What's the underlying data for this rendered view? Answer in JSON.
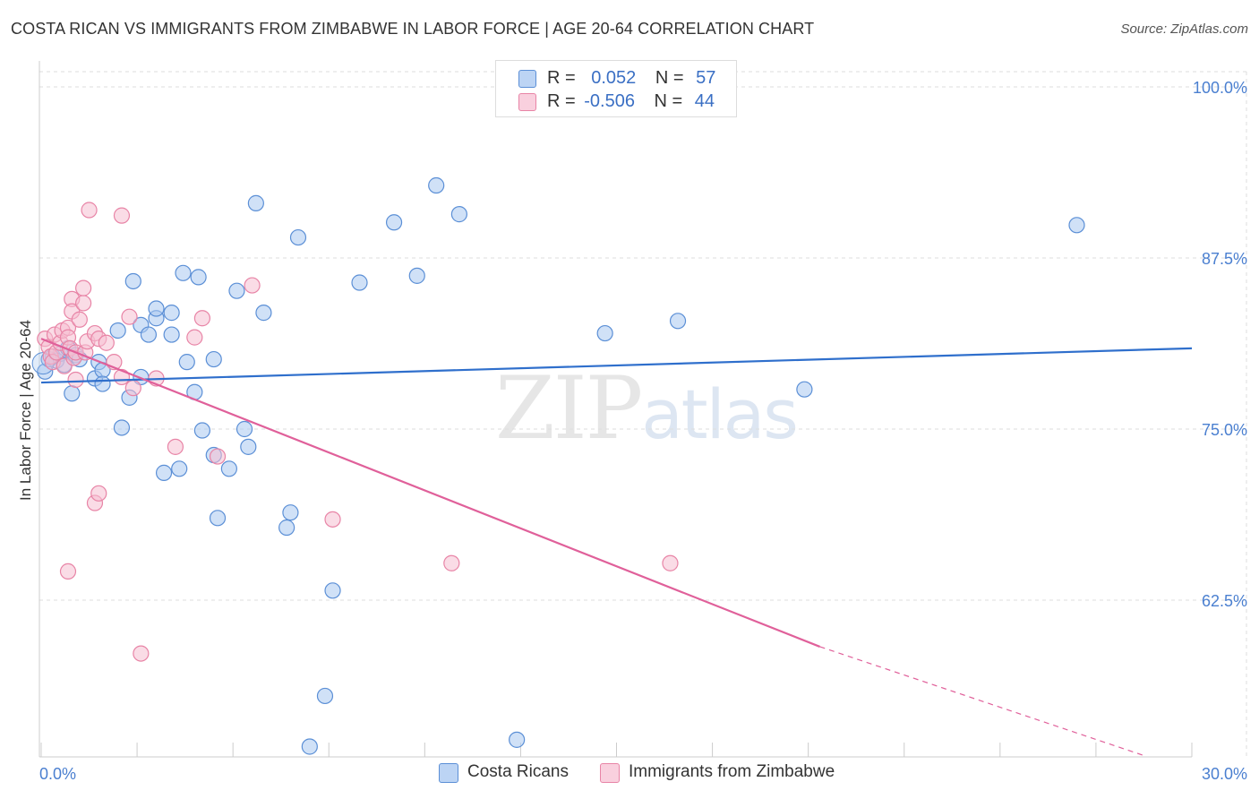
{
  "header": {
    "title": "COSTA RICAN VS IMMIGRANTS FROM ZIMBABWE IN LABOR FORCE | AGE 20-64 CORRELATION CHART",
    "source": "Source: ZipAtlas.com"
  },
  "watermark": {
    "zip": "ZIP",
    "atlas": "atlas"
  },
  "legend": {
    "rows": [
      {
        "r_label": "R =",
        "r_value": "0.052",
        "n_label": "N =",
        "n_value": "57"
      },
      {
        "r_label": "R =",
        "r_value": "-0.506",
        "n_label": "N =",
        "n_value": "44"
      }
    ]
  },
  "bottom_legend": {
    "series1": "Costa Ricans",
    "series2": "Immigrants from Zimbabwe"
  },
  "colors": {
    "blue_fill": "#aac8f0",
    "blue_stroke": "#5b8fd6",
    "blue_line": "#2f6fcc",
    "pink_fill": "#f6c0d2",
    "pink_stroke": "#e884a6",
    "pink_line": "#e0609a"
  },
  "chart_data": {
    "type": "scatter",
    "title": "COSTA RICAN VS IMMIGRANTS FROM ZIMBABWE IN LABOR FORCE | AGE 20-64 CORRELATION CHART",
    "xlabel": "",
    "ylabel": "In Labor Force | Age 20-64",
    "xlim": [
      0,
      30
    ],
    "ylim": [
      51,
      101
    ],
    "x_tick_labels": [
      "0.0%",
      "30.0%"
    ],
    "y_ticks": [
      100,
      87.5,
      75,
      62.5
    ],
    "y_tick_labels": [
      "100.0%",
      "87.5%",
      "75.0%",
      "62.5%"
    ],
    "grid": true,
    "series": [
      {
        "name": "Costa Ricans",
        "r": 0.052,
        "n": 57,
        "trend": {
          "x": [
            0,
            30
          ],
          "y": [
            78.4,
            80.9
          ]
        },
        "points": [
          [
            0.1,
            79.2
          ],
          [
            0.3,
            80.3
          ],
          [
            0.4,
            80.0
          ],
          [
            0.5,
            80.5
          ],
          [
            0.6,
            79.7
          ],
          [
            0.7,
            80.9
          ],
          [
            0.8,
            77.6
          ],
          [
            0.9,
            80.4
          ],
          [
            1.0,
            80.1
          ],
          [
            1.4,
            78.7
          ],
          [
            1.5,
            79.9
          ],
          [
            1.6,
            79.3
          ],
          [
            1.6,
            78.3
          ],
          [
            2.0,
            82.2
          ],
          [
            2.1,
            75.1
          ],
          [
            2.3,
            77.3
          ],
          [
            2.4,
            85.8
          ],
          [
            2.6,
            82.6
          ],
          [
            2.6,
            78.8
          ],
          [
            2.8,
            81.9
          ],
          [
            3.0,
            83.1
          ],
          [
            3.0,
            83.8
          ],
          [
            3.2,
            71.8
          ],
          [
            3.4,
            81.9
          ],
          [
            3.4,
            83.5
          ],
          [
            3.6,
            72.1
          ],
          [
            3.7,
            86.4
          ],
          [
            3.8,
            79.9
          ],
          [
            4.0,
            77.7
          ],
          [
            4.1,
            86.1
          ],
          [
            4.2,
            74.9
          ],
          [
            4.5,
            80.1
          ],
          [
            4.5,
            73.1
          ],
          [
            4.6,
            68.5
          ],
          [
            4.9,
            72.1
          ],
          [
            5.1,
            85.1
          ],
          [
            5.3,
            75.0
          ],
          [
            5.4,
            73.7
          ],
          [
            5.6,
            91.5
          ],
          [
            5.8,
            83.5
          ],
          [
            6.4,
            67.8
          ],
          [
            6.5,
            68.9
          ],
          [
            6.7,
            89.0
          ],
          [
            7.0,
            51.8
          ],
          [
            7.4,
            55.5
          ],
          [
            7.6,
            63.2
          ],
          [
            8.3,
            85.7
          ],
          [
            9.2,
            90.1
          ],
          [
            9.8,
            86.2
          ],
          [
            10.3,
            92.8
          ],
          [
            10.9,
            90.7
          ],
          [
            12.4,
            52.3
          ],
          [
            14.7,
            82.0
          ],
          [
            16.6,
            82.9
          ],
          [
            19.9,
            77.9
          ],
          [
            27.0,
            89.9
          ],
          [
            0.2,
            80.1
          ]
        ]
      },
      {
        "name": "Immigrants from Zimbabwe",
        "r": -0.506,
        "n": 44,
        "trend": {
          "x": [
            0,
            20.3
          ],
          "y": [
            81.6,
            59.1
          ]
        },
        "trend_dashed": {
          "x": [
            20.3,
            28.8
          ],
          "y": [
            59.1,
            51.1
          ]
        },
        "points": [
          [
            0.1,
            81.6
          ],
          [
            0.2,
            81.0
          ],
          [
            0.25,
            80.3
          ],
          [
            0.3,
            79.9
          ],
          [
            0.35,
            81.9
          ],
          [
            0.4,
            80.6
          ],
          [
            0.5,
            81.3
          ],
          [
            0.55,
            82.2
          ],
          [
            0.6,
            79.6
          ],
          [
            0.7,
            82.4
          ],
          [
            0.7,
            81.7
          ],
          [
            0.75,
            80.9
          ],
          [
            0.7,
            64.6
          ],
          [
            0.8,
            84.5
          ],
          [
            0.8,
            83.6
          ],
          [
            0.85,
            80.2
          ],
          [
            0.9,
            80.6
          ],
          [
            0.9,
            78.6
          ],
          [
            1.0,
            83.0
          ],
          [
            1.1,
            84.2
          ],
          [
            1.1,
            85.3
          ],
          [
            1.15,
            80.6
          ],
          [
            1.2,
            81.4
          ],
          [
            1.25,
            91.0
          ],
          [
            1.4,
            69.6
          ],
          [
            1.4,
            82.0
          ],
          [
            1.5,
            81.6
          ],
          [
            1.5,
            70.3
          ],
          [
            1.7,
            81.3
          ],
          [
            1.9,
            79.9
          ],
          [
            2.1,
            78.8
          ],
          [
            2.1,
            90.6
          ],
          [
            2.3,
            83.2
          ],
          [
            2.4,
            78.0
          ],
          [
            2.6,
            58.6
          ],
          [
            3.0,
            78.7
          ],
          [
            3.5,
            73.7
          ],
          [
            4.0,
            81.7
          ],
          [
            4.2,
            83.1
          ],
          [
            4.6,
            73.0
          ],
          [
            5.5,
            85.5
          ],
          [
            7.6,
            68.4
          ],
          [
            10.7,
            65.2
          ],
          [
            16.4,
            65.2
          ]
        ]
      }
    ]
  }
}
